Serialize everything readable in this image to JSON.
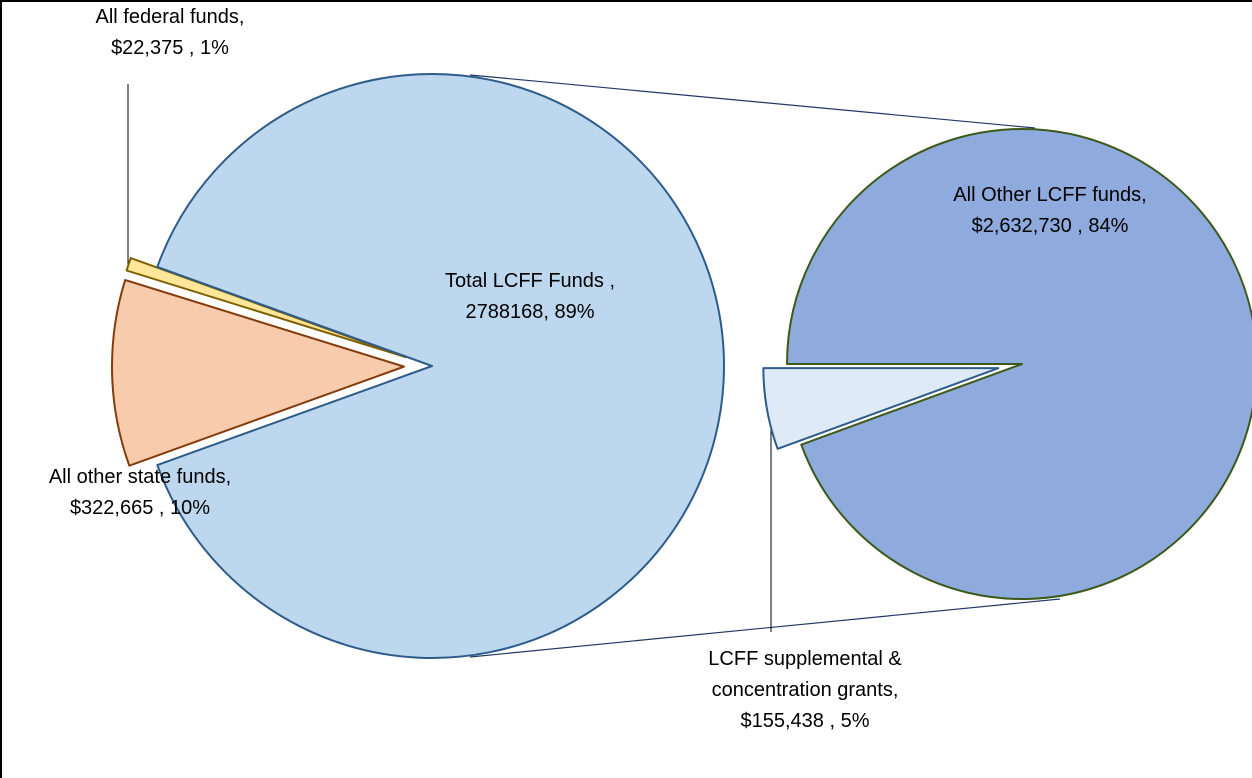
{
  "chart_data": {
    "type": "pie-of-pie",
    "main": {
      "categories": [
        "Total LCFF Funds ,",
        "All other state funds,",
        "All federal funds,"
      ],
      "values": [
        2788168,
        322665,
        22375
      ],
      "value_labels": [
        "2788168, 89%",
        "$322,665 , 10%",
        "$22,375 , 1%"
      ],
      "colors": [
        "#bdd7ee",
        "#f8cbad",
        "#ffe699"
      ],
      "strokes": [
        "#2e5c8a",
        "#843c0c",
        "#7f6000"
      ]
    },
    "secondary": {
      "categories": [
        "All Other LCFF funds,",
        "LCFF supplemental & concentration grants,"
      ],
      "values": [
        2632730,
        155438
      ],
      "value_labels": [
        "$2,632,730 , 84%",
        "$155,438 , 5%"
      ],
      "colors": [
        "#8faadc",
        "#deebf7"
      ],
      "strokes": [
        "#3b5a1a",
        "#2e5c8a"
      ]
    }
  }
}
